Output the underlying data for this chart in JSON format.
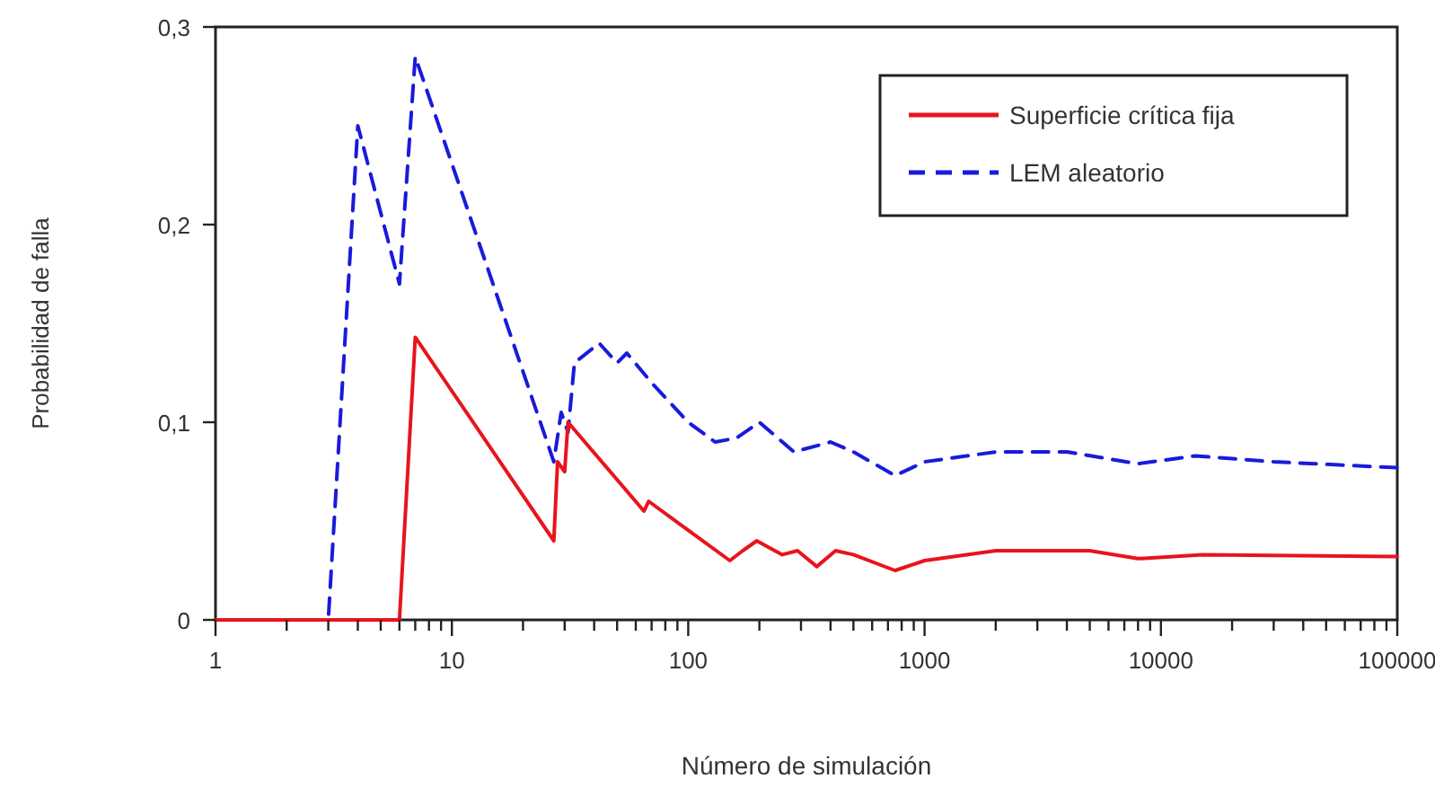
{
  "chart_data": {
    "type": "line",
    "xlabel": "Número de simulación",
    "ylabel": "Probabilidad de falla",
    "log": "x",
    "xlim": [
      1,
      100000
    ],
    "ylim": [
      0,
      0.3
    ],
    "yticks": [
      {
        "value": 0,
        "label": "0"
      },
      {
        "value": 0.1,
        "label": "0,1"
      },
      {
        "value": 0.2,
        "label": "0,2"
      },
      {
        "value": 0.3,
        "label": "0,3"
      }
    ],
    "xticks": [
      1,
      {
        "value": 2,
        "label": null
      },
      {
        "value": 3,
        "label": null
      },
      {
        "value": 4,
        "label": null
      },
      {
        "value": 5,
        "label": null
      },
      {
        "value": 6,
        "label": null
      },
      {
        "value": 7,
        "label": null
      },
      {
        "value": 8,
        "label": null
      },
      {
        "value": 9,
        "label": null
      },
      10,
      {
        "value": 20,
        "label": null
      },
      {
        "value": 30,
        "label": null
      },
      {
        "value": 40,
        "label": null
      },
      {
        "value": 50,
        "label": null
      },
      {
        "value": 60,
        "label": null
      },
      {
        "value": 70,
        "label": null
      },
      {
        "value": 80,
        "label": null
      },
      {
        "value": 90,
        "label": null
      },
      100,
      {
        "value": 200,
        "label": null
      },
      {
        "value": 300,
        "label": null
      },
      {
        "value": 400,
        "label": null
      },
      {
        "value": 500,
        "label": null
      },
      {
        "value": 600,
        "label": null
      },
      {
        "value": 700,
        "label": null
      },
      {
        "value": 800,
        "label": null
      },
      {
        "value": 900,
        "label": null
      },
      1000,
      {
        "value": 2000,
        "label": null
      },
      {
        "value": 3000,
        "label": null
      },
      {
        "value": 4000,
        "label": null
      },
      {
        "value": 5000,
        "label": null
      },
      {
        "value": 6000,
        "label": null
      },
      {
        "value": 7000,
        "label": null
      },
      {
        "value": 8000,
        "label": null
      },
      {
        "value": 9000,
        "label": null
      },
      10000,
      {
        "value": 20000,
        "label": null
      },
      {
        "value": 30000,
        "label": null
      },
      {
        "value": 40000,
        "label": null
      },
      {
        "value": 50000,
        "label": null
      },
      {
        "value": 60000,
        "label": null
      },
      {
        "value": 70000,
        "label": null
      },
      {
        "value": 80000,
        "label": null
      },
      {
        "value": 90000,
        "label": null
      },
      100000
    ],
    "legend": "top right",
    "grid": false,
    "series": [
      {
        "name": "Superficie crítica fija",
        "color": "#e8141c",
        "line_style": "solid",
        "x": [
          1,
          6,
          7,
          27,
          28,
          30,
          31,
          65,
          68,
          150,
          170,
          195,
          250,
          290,
          350,
          420,
          500,
          750,
          1000,
          2000,
          5000,
          8000,
          15000,
          100000
        ],
        "values": [
          0,
          0,
          0.143,
          0.04,
          0.08,
          0.075,
          0.1,
          0.055,
          0.06,
          0.03,
          0.035,
          0.04,
          0.033,
          0.035,
          0.027,
          0.035,
          0.033,
          0.025,
          0.03,
          0.035,
          0.035,
          0.031,
          0.033,
          0.032
        ]
      },
      {
        "name": "LEM aleatorio",
        "color": "#1a1adc",
        "line_style": "dashed",
        "x": [
          1,
          3,
          4,
          6,
          7,
          27,
          29,
          31,
          33,
          42,
          50,
          55,
          70,
          100,
          130,
          160,
          200,
          280,
          400,
          500,
          750,
          1000,
          2000,
          4000,
          8000,
          14000,
          30000,
          100000
        ],
        "values": [
          0,
          0,
          0.25,
          0.17,
          0.285,
          0.08,
          0.105,
          0.095,
          0.13,
          0.14,
          0.13,
          0.135,
          0.12,
          0.1,
          0.09,
          0.092,
          0.1,
          0.085,
          0.09,
          0.085,
          0.073,
          0.08,
          0.085,
          0.085,
          0.079,
          0.083,
          0.08,
          0.077
        ]
      }
    ]
  }
}
